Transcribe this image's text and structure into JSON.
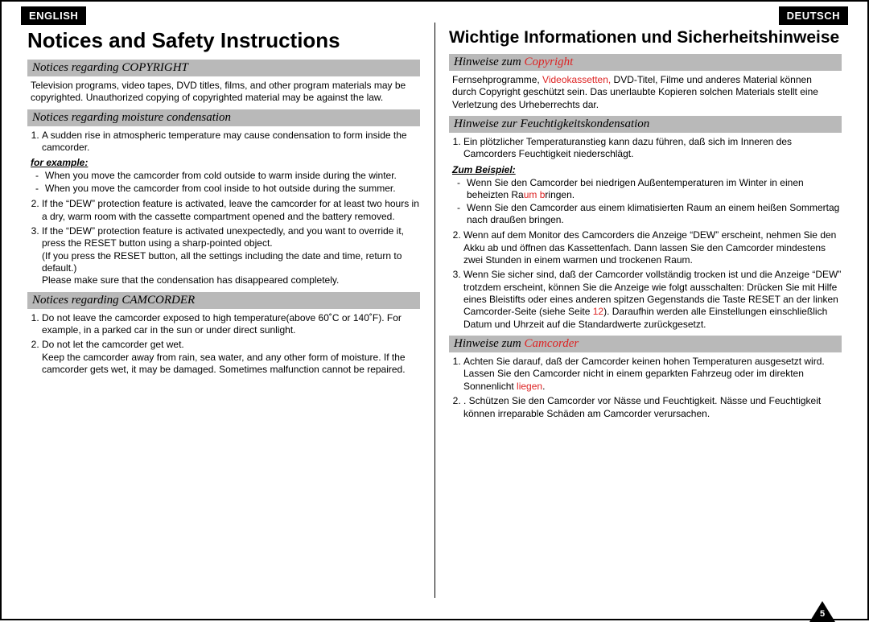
{
  "left": {
    "lang": "ENGLISH",
    "title": "Notices and Safety Instructions",
    "s1": {
      "head": "Notices regarding COPYRIGHT",
      "body": "Television programs, video tapes, DVD titles, films, and other program materials may be copyrighted. Unauthorized copying of copyrighted material may be against the law."
    },
    "s2": {
      "head": "Notices regarding moisture condensation",
      "li1": "A sudden rise in atmospheric temperature may cause condensation to form inside the camcorder.",
      "sub": "for example:",
      "d1": "When you move the camcorder from cold outside to warm inside during the winter.",
      "d2": "When you move the camcorder from cool inside to hot outside during the summer.",
      "li2": "If the “DEW” protection feature is activated, leave the camcorder for at least two hours in a dry, warm room with the cassette compartment opened and the battery removed.",
      "li3a": "If the “DEW” protection feature is activated unexpectedly, and you want to override it, press the RESET button using a sharp-pointed object.",
      "li3b": "(If you press the RESET button, all the settings including the date and time, return to default.)",
      "li3c": "Please make sure that the condensation has disappeared completely."
    },
    "s3": {
      "head": "Notices regarding CAMCORDER",
      "li1": "Do not leave the camcorder exposed to high temperature(above 60˚C or 140˚F). For example, in a parked car in the sun or under direct sunlight.",
      "li2a": "Do not let the camcorder get wet.",
      "li2b": "Keep the camcorder away from rain, sea water, and any other form of moisture. If the camcorder gets wet, it may be damaged. Sometimes malfunction cannot be repaired."
    }
  },
  "right": {
    "lang": "DEUTSCH",
    "title": "Wichtige Informationen und Sicherheitshinweise",
    "s1": {
      "head_a": "Hinweise zum ",
      "head_b": "Copyright",
      "body_a": "Fernsehprogramme, ",
      "body_b": "Videokassetten,",
      "body_c": " DVD-Titel, Filme und anderes Material können durch Copyright geschützt sein. Das unerlaubte Kopieren solchen Materials stellt eine Verletzung des Urheberrechts dar."
    },
    "s2": {
      "head": "Hinweise zur Feuchtigkeitskondensation",
      "li1": "Ein plötzlicher Temperaturanstieg kann dazu führen, daß sich im Inneren des Camcorders Feuchtigkeit niederschlägt.",
      "sub": "Zum Beispiel:",
      "d1a": "Wenn Sie den Camcorder bei niedrigen Außentemperaturen im Winter in einen beheizten Ra",
      "d1b": "um b",
      "d1c": "ringen.",
      "d2": "Wenn Sie den Camcorder aus einem klimatisierten Raum an einem heißen Sommertag nach draußen bringen.",
      "li2": "Wenn auf dem Monitor des Camcorders die Anzeige “DEW” erscheint, nehmen Sie den Akku ab und öffnen das Kassettenfach. Dann lassen Sie den Camcorder mindestens zwei Stunden in einem warmen und trockenen Raum.",
      "li3a": "Wenn Sie sicher sind, daß der Camcorder vollständig trocken ist und die Anzeige “DEW” trotzdem erscheint, können Sie die Anzeige wie folgt ausschalten: Drücken Sie mit Hilfe eines Bleistifts oder eines anderen spitzen Gegenstands die Taste RESET an der linken Camcorder-Seite (siehe Seite ",
      "li3b": "12",
      "li3c": "). Daraufhin werden alle Einstellungen einschließlich Datum und Uhrzeit auf die Standardwerte zurückgesetzt."
    },
    "s3": {
      "head_a": "Hinweise zum ",
      "head_b": "Camcorder",
      "li1a": "Achten Sie darauf, daß der Camcorder keinen hohen Temperaturen ausgesetzt wird. Lassen Sie den Camcorder nicht in einem geparkten Fahrzeug oder im direkten Sonnenlicht ",
      "li1b": "liegen",
      "li1c": ".",
      "li2": ". Schützen Sie den Camcorder vor Nässe und Feuchtigkeit. Nässe und Feuchtigkeit können irreparable Schäden am Camcorder verursachen."
    }
  },
  "page_number": "5"
}
